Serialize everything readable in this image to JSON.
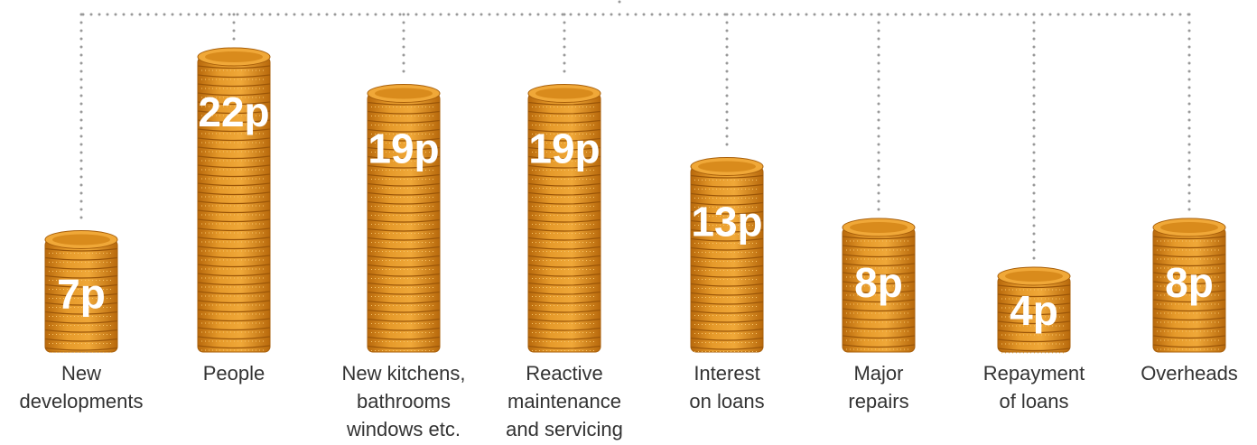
{
  "chart_data": {
    "type": "bar",
    "categories": [
      [
        "New",
        "developments"
      ],
      [
        "People"
      ],
      [
        "New kitchens,",
        "bathrooms",
        "windows etc."
      ],
      [
        "Reactive",
        "maintenance",
        "and servicing"
      ],
      [
        "Interest",
        "on loans"
      ],
      [
        "Major",
        "repairs"
      ],
      [
        "Repayment",
        "of loans"
      ],
      [
        "Overheads"
      ]
    ],
    "values": [
      7,
      22,
      19,
      19,
      13,
      8,
      4,
      8
    ],
    "value_labels": [
      "7p",
      "22p",
      "19p",
      "19p",
      "13p",
      "8p",
      "4p",
      "8p"
    ],
    "color": "#d98b1c"
  }
}
